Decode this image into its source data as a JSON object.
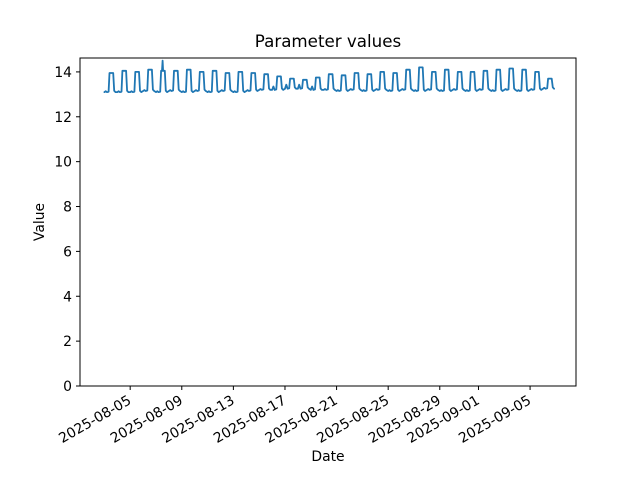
{
  "chart_data": {
    "type": "line",
    "title": "Parameter values",
    "xlabel": "Date",
    "ylabel": "Value",
    "line_color": "#1f77b4",
    "axes_color": "#000000",
    "background": "#ffffff",
    "grid": false,
    "legend": null,
    "ylim": [
      0,
      14.62
    ],
    "yticks": [
      0,
      2,
      4,
      6,
      8,
      10,
      12,
      14
    ],
    "x_epoch": "2025-08-05",
    "xtick_labels": [
      "2025-08-05",
      "2025-08-09",
      "2025-08-13",
      "2025-08-17",
      "2025-08-21",
      "2025-08-25",
      "2025-08-29",
      "2025-09-01",
      "2025-09-05"
    ],
    "xtick_day_offsets": [
      0,
      4,
      8,
      12,
      16,
      20,
      24,
      27,
      31
    ],
    "xlim_day_offsets": [
      -3.89,
      34.56
    ],
    "pattern": "one square-wave cycle per day: flat low, steep rise to flat high, steep fall",
    "days": [
      {
        "date": "2025-08-03",
        "low": 13.1,
        "high": 13.95
      },
      {
        "date": "2025-08-04",
        "low": 13.1,
        "high": 14.05
      },
      {
        "date": "2025-08-05",
        "low": 13.1,
        "high": 14.0
      },
      {
        "date": "2025-08-06",
        "low": 13.15,
        "high": 14.1
      },
      {
        "date": "2025-08-07",
        "low": 13.1,
        "high": 14.05,
        "spike": 14.5
      },
      {
        "date": "2025-08-08",
        "low": 13.15,
        "high": 14.05
      },
      {
        "date": "2025-08-09",
        "low": 13.1,
        "high": 14.1
      },
      {
        "date": "2025-08-10",
        "low": 13.15,
        "high": 14.0
      },
      {
        "date": "2025-08-11",
        "low": 13.1,
        "high": 14.05
      },
      {
        "date": "2025-08-12",
        "low": 13.15,
        "high": 13.95
      },
      {
        "date": "2025-08-13",
        "low": 13.1,
        "high": 14.0
      },
      {
        "date": "2025-08-14",
        "low": 13.15,
        "high": 13.95
      },
      {
        "date": "2025-08-15",
        "low": 13.2,
        "high": 13.9
      },
      {
        "date": "2025-08-16",
        "low": 13.2,
        "high": 13.8,
        "bump": 0.15
      },
      {
        "date": "2025-08-17",
        "low": 13.25,
        "high": 13.7,
        "bump": 0.18
      },
      {
        "date": "2025-08-18",
        "low": 13.25,
        "high": 13.65,
        "bump": 0.18
      },
      {
        "date": "2025-08-19",
        "low": 13.2,
        "high": 13.75,
        "bump": 0.15
      },
      {
        "date": "2025-08-20",
        "low": 13.2,
        "high": 13.9
      },
      {
        "date": "2025-08-21",
        "low": 13.15,
        "high": 13.85
      },
      {
        "date": "2025-08-22",
        "low": 13.2,
        "high": 13.95
      },
      {
        "date": "2025-08-23",
        "low": 13.15,
        "high": 13.9
      },
      {
        "date": "2025-08-24",
        "low": 13.2,
        "high": 14.0
      },
      {
        "date": "2025-08-25",
        "low": 13.15,
        "high": 13.95
      },
      {
        "date": "2025-08-26",
        "low": 13.2,
        "high": 14.1
      },
      {
        "date": "2025-08-27",
        "low": 13.15,
        "high": 14.2
      },
      {
        "date": "2025-08-28",
        "low": 13.2,
        "high": 14.0
      },
      {
        "date": "2025-08-29",
        "low": 13.15,
        "high": 14.1
      },
      {
        "date": "2025-08-30",
        "low": 13.2,
        "high": 14.0
      },
      {
        "date": "2025-08-31",
        "low": 13.15,
        "high": 14.0
      },
      {
        "date": "2025-09-01",
        "low": 13.2,
        "high": 14.05
      },
      {
        "date": "2025-09-02",
        "low": 13.15,
        "high": 14.1
      },
      {
        "date": "2025-09-03",
        "low": 13.2,
        "high": 14.15
      },
      {
        "date": "2025-09-04",
        "low": 13.15,
        "high": 14.1
      },
      {
        "date": "2025-09-05",
        "low": 13.2,
        "high": 14.0
      },
      {
        "date": "2025-09-06",
        "low": 13.25,
        "high": 13.7
      }
    ]
  }
}
